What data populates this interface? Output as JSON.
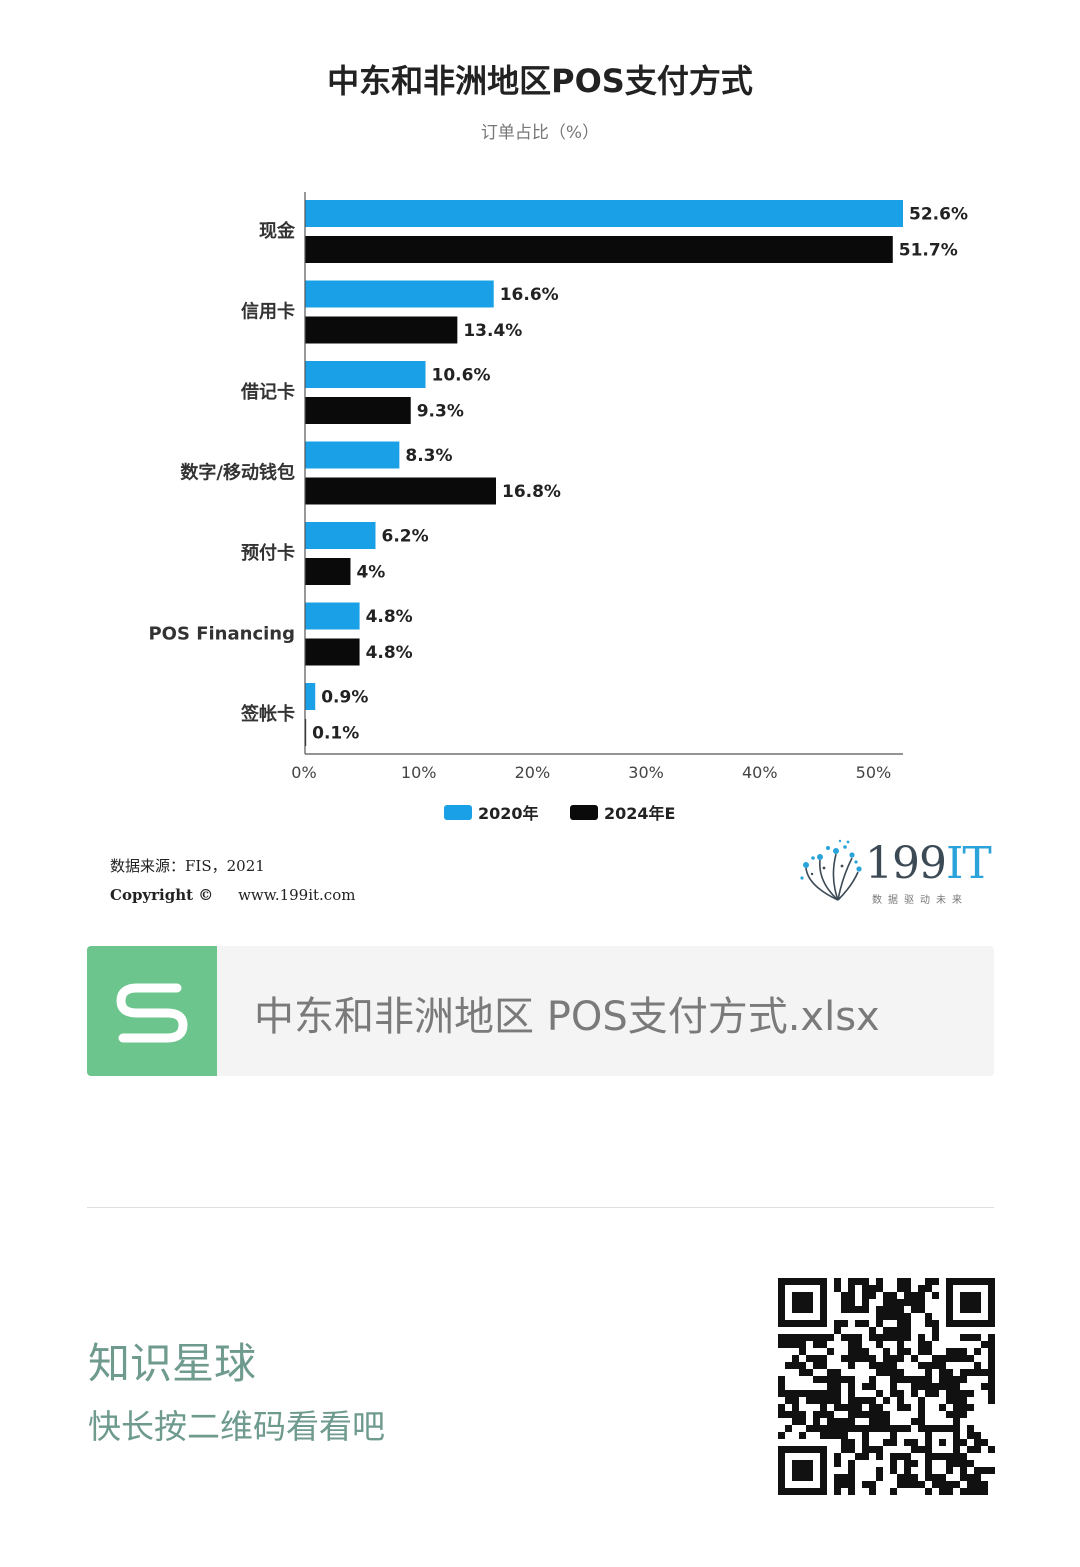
{
  "chart_data": {
    "type": "bar",
    "orientation": "horizontal",
    "title": "中东和非洲地区POS支付方式",
    "subtitle": "订单占比（%）",
    "categories": [
      "现金",
      "信用卡",
      "借记卡",
      "数字/移动钱包",
      "预付卡",
      "POS Financing",
      "签帐卡"
    ],
    "series": [
      {
        "name": "2020年",
        "color": "#1aa0e6",
        "values": [
          52.6,
          16.6,
          10.6,
          8.3,
          6.2,
          4.8,
          0.9
        ],
        "labels": [
          "52.6%",
          "16.6%",
          "10.6%",
          "8.3%",
          "6.2%",
          "4.8%",
          "0.9%"
        ]
      },
      {
        "name": "2024年E",
        "color": "#0a0a0a",
        "values": [
          51.7,
          13.4,
          9.3,
          16.8,
          4.0,
          4.8,
          0.1
        ],
        "labels": [
          "51.7%",
          "13.4%",
          "9.3%",
          "16.8%",
          "4%",
          "4.8%",
          "0.1%"
        ]
      }
    ],
    "xlim": [
      0,
      52.6
    ],
    "xticks": [
      0,
      10,
      20,
      30,
      40,
      50
    ],
    "xtick_labels": [
      "0%",
      "10%",
      "20%",
      "30%",
      "40%",
      "50%"
    ],
    "legend_position": "bottom",
    "grid": false
  },
  "source": {
    "text": "数据来源：FIS，2021",
    "copyright": "Copyright ©",
    "url": "www.199it.com"
  },
  "brand": {
    "name_digits": "199",
    "name_letters": "IT",
    "slogan": "数据驱动未来",
    "color": "#29a3da"
  },
  "file_card": {
    "filename": "中东和非洲地区 POS支付方式.xlsx",
    "icon": "spreadsheet-s-icon",
    "icon_color": "#6cc58d"
  },
  "footer": {
    "title": "知识星球",
    "subtitle": "快长按二维码看看吧",
    "text_color": "#6f9a8e",
    "qr_icon": "qr-code-icon"
  }
}
